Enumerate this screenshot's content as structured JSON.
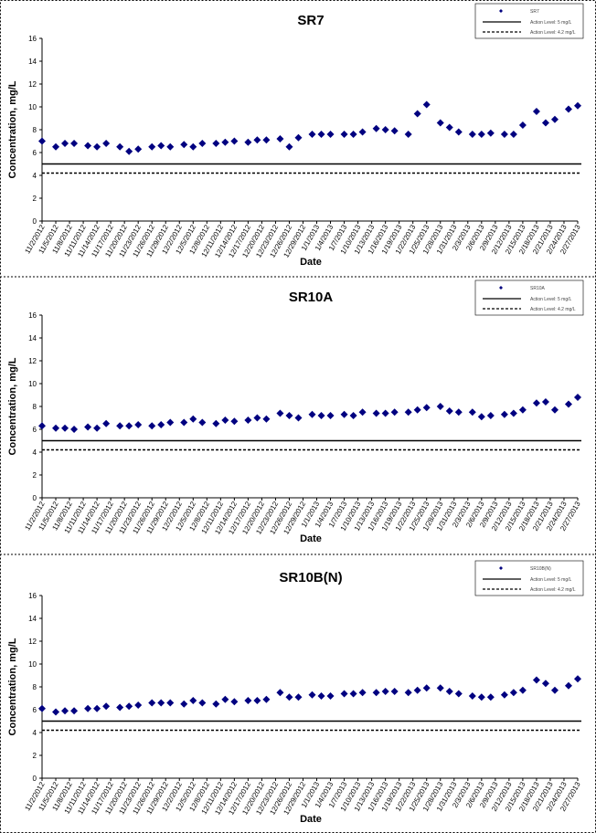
{
  "chart_data": [
    {
      "type": "scatter",
      "title": "SR7",
      "y_label": "Concentration, mg/L",
      "x_label": "Date",
      "series": [
        {
          "name": "SR7",
          "color": "#000080",
          "x": [
            "11/2/2012",
            "11/5/2012",
            "11/7/2012",
            "11/9/2012",
            "11/12/2012",
            "11/14/2012",
            "11/16/2012",
            "11/19/2012",
            "11/21/2012",
            "11/23/2012",
            "11/26/2012",
            "11/28/2012",
            "11/30/2012",
            "12/3/2012",
            "12/5/2012",
            "12/7/2012",
            "12/10/2012",
            "12/12/2012",
            "12/14/2012",
            "12/17/2012",
            "12/19/2012",
            "12/21/2012",
            "12/24/2012",
            "12/26/2012",
            "12/28/2012",
            "12/31/2012",
            "1/2/2013",
            "1/4/2013",
            "1/7/2013",
            "1/9/2013",
            "1/11/2013",
            "1/14/2013",
            "1/16/2013",
            "1/18/2013",
            "1/21/2013",
            "1/23/2013",
            "1/25/2013",
            "1/28/2013",
            "1/30/2013",
            "2/1/2013",
            "2/4/2013",
            "2/6/2013",
            "2/8/2013",
            "2/11/2013",
            "2/13/2013",
            "2/15/2013",
            "2/18/2013",
            "2/20/2013",
            "2/22/2013",
            "2/25/2013",
            "2/27/2013"
          ],
          "values": [
            7.0,
            6.5,
            6.8,
            6.8,
            6.6,
            6.5,
            6.8,
            6.5,
            6.1,
            6.3,
            6.5,
            6.6,
            6.5,
            6.7,
            6.5,
            6.8,
            6.8,
            6.9,
            7.0,
            6.9,
            7.1,
            7.1,
            7.2,
            6.5,
            7.3,
            7.6,
            7.6,
            7.6,
            7.6,
            7.6,
            7.8,
            8.1,
            8.0,
            7.9,
            7.6,
            9.4,
            10.2,
            8.6,
            8.2,
            7.8,
            7.6,
            7.6,
            7.7,
            7.6,
            7.6,
            8.4,
            9.6,
            8.6,
            8.9,
            9.8,
            10.1
          ]
        }
      ],
      "reference_lines": [
        {
          "name": "Action Level: 5 mg/L",
          "value": 5,
          "style": "solid"
        },
        {
          "name": "Action Level: 4.2 mg/L",
          "value": 4.2,
          "style": "dashed"
        }
      ],
      "xlim": [
        "11/2/2012",
        "2/27/2013"
      ],
      "xticks": [
        "11/2/2012",
        "11/5/2012",
        "11/8/2012",
        "11/11/2012",
        "11/14/2012",
        "11/17/2012",
        "11/20/2012",
        "11/23/2012",
        "11/26/2012",
        "11/29/2012",
        "12/2/2012",
        "12/5/2012",
        "12/8/2012",
        "12/11/2012",
        "12/14/2012",
        "12/17/2012",
        "12/20/2012",
        "12/23/2012",
        "12/26/2012",
        "12/29/2012",
        "1/1/2013",
        "1/4/2013",
        "1/7/2013",
        "1/10/2013",
        "1/13/2013",
        "1/16/2013",
        "1/19/2013",
        "1/22/2013",
        "1/25/2013",
        "1/28/2013",
        "1/31/2013",
        "2/3/2013",
        "2/6/2013",
        "2/9/2013",
        "2/12/2013",
        "2/15/2013",
        "2/18/2013",
        "2/21/2013",
        "2/24/2013",
        "2/27/2013"
      ],
      "ylim": [
        0,
        16
      ],
      "yticks": [
        0,
        2,
        4,
        6,
        8,
        10,
        12,
        14,
        16
      ],
      "legend": "top-right"
    },
    {
      "type": "scatter",
      "title": "SR10A",
      "y_label": "Concentration, mg/L",
      "x_label": "Date",
      "series": [
        {
          "name": "SR10A",
          "color": "#000080",
          "x": [
            "11/2/2012",
            "11/5/2012",
            "11/7/2012",
            "11/9/2012",
            "11/12/2012",
            "11/14/2012",
            "11/16/2012",
            "11/19/2012",
            "11/21/2012",
            "11/23/2012",
            "11/26/2012",
            "11/28/2012",
            "11/30/2012",
            "12/3/2012",
            "12/5/2012",
            "12/7/2012",
            "12/10/2012",
            "12/12/2012",
            "12/14/2012",
            "12/17/2012",
            "12/19/2012",
            "12/21/2012",
            "12/24/2012",
            "12/26/2012",
            "12/28/2012",
            "12/31/2012",
            "1/2/2013",
            "1/4/2013",
            "1/7/2013",
            "1/9/2013",
            "1/11/2013",
            "1/14/2013",
            "1/16/2013",
            "1/18/2013",
            "1/21/2013",
            "1/23/2013",
            "1/25/2013",
            "1/28/2013",
            "1/30/2013",
            "2/1/2013",
            "2/4/2013",
            "2/6/2013",
            "2/8/2013",
            "2/11/2013",
            "2/13/2013",
            "2/15/2013",
            "2/18/2013",
            "2/20/2013",
            "2/22/2013",
            "2/25/2013",
            "2/27/2013"
          ],
          "values": [
            6.3,
            6.1,
            6.1,
            6.0,
            6.2,
            6.1,
            6.5,
            6.3,
            6.3,
            6.4,
            6.3,
            6.4,
            6.6,
            6.6,
            6.9,
            6.6,
            6.5,
            6.8,
            6.7,
            6.8,
            7.0,
            6.9,
            7.4,
            7.2,
            7.0,
            7.3,
            7.2,
            7.2,
            7.3,
            7.2,
            7.5,
            7.4,
            7.4,
            7.5,
            7.5,
            7.7,
            7.9,
            8.0,
            7.6,
            7.5,
            7.5,
            7.1,
            7.2,
            7.3,
            7.4,
            7.7,
            8.3,
            8.4,
            7.7,
            8.2,
            8.8
          ]
        }
      ],
      "reference_lines": [
        {
          "name": "Action Level: 5 mg/L",
          "value": 5,
          "style": "solid"
        },
        {
          "name": "Action Level: 4.2 mg/L",
          "value": 4.2,
          "style": "dashed"
        }
      ],
      "xlim": [
        "11/2/2012",
        "2/27/2013"
      ],
      "xticks": [
        "11/2/2012",
        "11/5/2012",
        "11/8/2012",
        "11/11/2012",
        "11/14/2012",
        "11/17/2012",
        "11/20/2012",
        "11/23/2012",
        "11/26/2012",
        "11/29/2012",
        "12/2/2012",
        "12/5/2012",
        "12/8/2012",
        "12/11/2012",
        "12/14/2012",
        "12/17/2012",
        "12/20/2012",
        "12/23/2012",
        "12/26/2012",
        "12/29/2012",
        "1/1/2013",
        "1/4/2013",
        "1/7/2013",
        "1/10/2013",
        "1/13/2013",
        "1/16/2013",
        "1/19/2013",
        "1/22/2013",
        "1/25/2013",
        "1/28/2013",
        "1/31/2013",
        "2/3/2013",
        "2/6/2013",
        "2/9/2013",
        "2/12/2013",
        "2/15/2013",
        "2/18/2013",
        "2/21/2013",
        "2/24/2013",
        "2/27/2013"
      ],
      "ylim": [
        0,
        16
      ],
      "yticks": [
        0,
        2,
        4,
        6,
        8,
        10,
        12,
        14,
        16
      ],
      "legend": "top-right"
    },
    {
      "type": "scatter",
      "title": "SR10B(N)",
      "y_label": "Concentration, mg/L",
      "x_label": "Date",
      "series": [
        {
          "name": "SR10B(N)",
          "color": "#000080",
          "x": [
            "11/2/2012",
            "11/5/2012",
            "11/7/2012",
            "11/9/2012",
            "11/12/2012",
            "11/14/2012",
            "11/16/2012",
            "11/19/2012",
            "11/21/2012",
            "11/23/2012",
            "11/26/2012",
            "11/28/2012",
            "11/30/2012",
            "12/3/2012",
            "12/5/2012",
            "12/7/2012",
            "12/10/2012",
            "12/12/2012",
            "12/14/2012",
            "12/17/2012",
            "12/19/2012",
            "12/21/2012",
            "12/24/2012",
            "12/26/2012",
            "12/28/2012",
            "12/31/2012",
            "1/2/2013",
            "1/4/2013",
            "1/7/2013",
            "1/9/2013",
            "1/11/2013",
            "1/14/2013",
            "1/16/2013",
            "1/18/2013",
            "1/21/2013",
            "1/23/2013",
            "1/25/2013",
            "1/28/2013",
            "1/30/2013",
            "2/1/2013",
            "2/4/2013",
            "2/6/2013",
            "2/8/2013",
            "2/11/2013",
            "2/13/2013",
            "2/15/2013",
            "2/18/2013",
            "2/20/2013",
            "2/22/2013",
            "2/25/2013",
            "2/27/2013"
          ],
          "values": [
            6.1,
            5.8,
            5.9,
            5.9,
            6.1,
            6.1,
            6.3,
            6.2,
            6.3,
            6.4,
            6.6,
            6.6,
            6.6,
            6.5,
            6.8,
            6.6,
            6.5,
            6.9,
            6.7,
            6.8,
            6.8,
            6.9,
            7.5,
            7.1,
            7.1,
            7.3,
            7.2,
            7.2,
            7.4,
            7.4,
            7.5,
            7.5,
            7.6,
            7.6,
            7.5,
            7.7,
            7.9,
            7.9,
            7.6,
            7.4,
            7.2,
            7.1,
            7.1,
            7.3,
            7.5,
            7.7,
            8.6,
            8.3,
            7.7,
            8.1,
            8.7
          ]
        }
      ],
      "reference_lines": [
        {
          "name": "Action Level: 5 mg/L",
          "value": 5,
          "style": "solid"
        },
        {
          "name": "Action Level: 4.2 mg/L",
          "value": 4.2,
          "style": "dashed"
        }
      ],
      "xlim": [
        "11/2/2012",
        "2/27/2013"
      ],
      "xticks": [
        "11/2/2012",
        "11/5/2012",
        "11/8/2012",
        "11/11/2012",
        "11/14/2012",
        "11/17/2012",
        "11/20/2012",
        "11/23/2012",
        "11/26/2012",
        "11/29/2012",
        "12/2/2012",
        "12/5/2012",
        "12/8/2012",
        "12/11/2012",
        "12/14/2012",
        "12/17/2012",
        "12/20/2012",
        "12/23/2012",
        "12/26/2012",
        "12/29/2012",
        "1/1/2013",
        "1/4/2013",
        "1/7/2013",
        "1/10/2013",
        "1/13/2013",
        "1/16/2013",
        "1/19/2013",
        "1/22/2013",
        "1/25/2013",
        "1/28/2013",
        "1/31/2013",
        "2/3/2013",
        "2/6/2013",
        "2/9/2013",
        "2/12/2013",
        "2/15/2013",
        "2/18/2013",
        "2/21/2013",
        "2/24/2013",
        "2/27/2013"
      ],
      "ylim": [
        0,
        16
      ],
      "yticks": [
        0,
        2,
        4,
        6,
        8,
        10,
        12,
        14,
        16
      ],
      "legend": "top-right"
    }
  ]
}
